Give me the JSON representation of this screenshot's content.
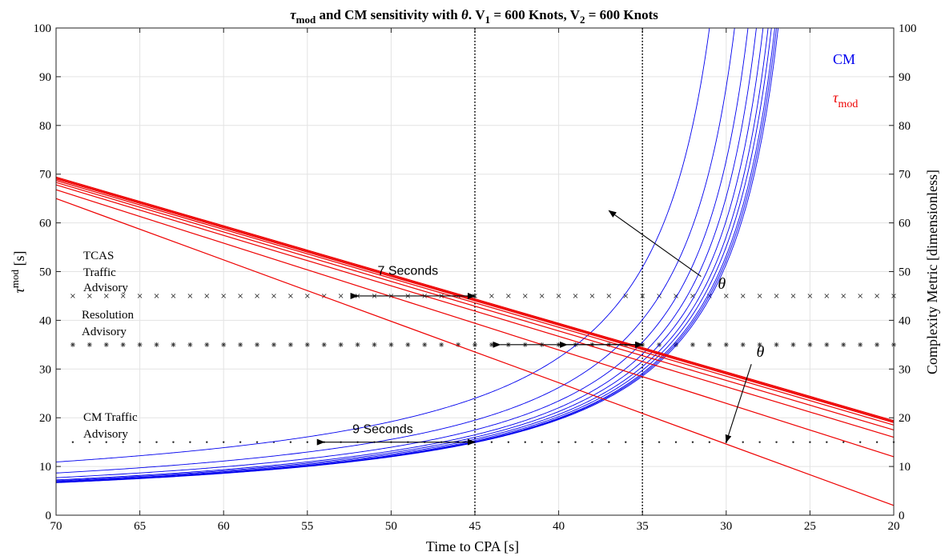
{
  "chart_data": {
    "type": "line",
    "title": {
      "pre": "τ",
      "pre_sub": "mod",
      "mid": " and CM sensitivity with ",
      "theta": "θ",
      "v1": ". V",
      "v1_sub": "1",
      "v1_val": " = 600 Knots, V",
      "v2_sub": "2",
      "v2_val": " = 600 Knots"
    },
    "xlabel": "Time to CPA [s]",
    "ylabel_left_main": "τ",
    "ylabel_left_sup": "mod",
    "ylabel_left_unit": " [s]",
    "ylabel_right": "Complexity Metric [dimensionless]",
    "xlim": [
      70,
      20
    ],
    "ylim": [
      0,
      100
    ],
    "x_ticks": [
      70,
      65,
      60,
      55,
      50,
      45,
      40,
      35,
      30,
      25,
      20
    ],
    "y_ticks": [
      0,
      10,
      20,
      30,
      40,
      50,
      60,
      70,
      80,
      90,
      100
    ],
    "grid": true,
    "legend": {
      "position": "top-right",
      "cm_label": "CM",
      "tau_label_main": "τ",
      "tau_label_sub": "mod",
      "cm_color": "#0000ee",
      "tau_color": "#ee0000"
    },
    "vertical_lines_x": [
      45,
      35
    ],
    "thresholds": [
      {
        "name": "TCAS Traffic Advisory",
        "y": 45,
        "marker": "x",
        "label_lines": [
          "TCAS",
          "Traffic",
          "Advisory"
        ]
      },
      {
        "name": "Resolution Advisory",
        "y": 35,
        "marker": "*",
        "label_lines": [
          "Resolution",
          "Advisory"
        ]
      },
      {
        "name": "CM Traffic Advisory",
        "y": 15,
        "marker": "dot",
        "label_lines": [
          "CM Traffic",
          "Advisory"
        ]
      }
    ],
    "annotations": {
      "seven_seconds": {
        "text": "7 Seconds",
        "y": 45,
        "from": 52,
        "to": 45
      },
      "nine_seconds": {
        "text": "9 Seconds",
        "y": 15,
        "from": 54,
        "to": 45
      },
      "ra_arrow_a": {
        "y": 35,
        "from": 43.5,
        "to": 35
      },
      "ra_arrow_b": {
        "y": 35,
        "from": 39.5,
        "to": 35
      },
      "theta_cm": {
        "text": "θ",
        "arrow_from": [
          31.5,
          49
        ],
        "arrow_to": [
          37,
          62.5
        ],
        "label_at": [
          30.5,
          46.5
        ]
      },
      "theta_tau": {
        "text": "θ",
        "arrow_from": [
          28.5,
          31
        ],
        "arrow_to": [
          30,
          15
        ],
        "label_at": [
          28.2,
          32.5
        ]
      }
    },
    "series": [
      {
        "kind": "tau",
        "y_at_70": 69.4,
        "y_at_20": 19.4
      },
      {
        "kind": "tau",
        "y_at_70": 69.2,
        "y_at_20": 19.2
      },
      {
        "kind": "tau",
        "y_at_70": 69.0,
        "y_at_20": 19.0
      },
      {
        "kind": "tau",
        "y_at_70": 68.7,
        "y_at_20": 18.5
      },
      {
        "kind": "tau",
        "y_at_70": 68.3,
        "y_at_20": 17.5
      },
      {
        "kind": "tau",
        "y_at_70": 67.8,
        "y_at_20": 16.0
      },
      {
        "kind": "tau",
        "y_at_70": 66.8,
        "y_at_20": 12.0
      },
      {
        "kind": "tau",
        "y_at_70": 65.0,
        "y_at_20": 2.0
      },
      {
        "kind": "cm",
        "y_at_45": 24.0,
        "x_at_100": 31.0
      },
      {
        "kind": "cm",
        "y_at_45": 19.5,
        "x_at_100": 29.5
      },
      {
        "kind": "cm",
        "y_at_45": 17.5,
        "x_at_100": 28.7
      },
      {
        "kind": "cm",
        "y_at_45": 16.5,
        "x_at_100": 28.2
      },
      {
        "kind": "cm",
        "y_at_45": 16.0,
        "x_at_100": 27.8
      },
      {
        "kind": "cm",
        "y_at_45": 15.6,
        "x_at_100": 27.5
      },
      {
        "kind": "cm",
        "y_at_45": 15.3,
        "x_at_100": 27.3
      },
      {
        "kind": "cm",
        "y_at_45": 15.1,
        "x_at_100": 27.1
      },
      {
        "kind": "cm",
        "y_at_45": 15.0,
        "x_at_100": 27.0
      },
      {
        "kind": "cm",
        "y_at_45": 14.9,
        "x_at_100": 26.9
      }
    ]
  }
}
